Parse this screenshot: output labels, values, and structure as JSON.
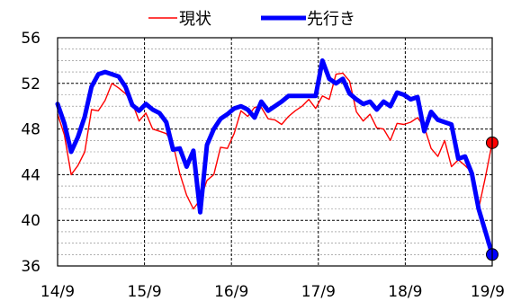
{
  "chart_data": {
    "type": "line",
    "grid": true,
    "legend_position": "top",
    "ylim": [
      36,
      56
    ],
    "y_ticks": [
      "56",
      "52",
      "48",
      "44",
      "40",
      "36"
    ],
    "y_tick_values": [
      56,
      52,
      48,
      44,
      40,
      36
    ],
    "x_tick_labels": [
      "14/9",
      "15/9",
      "16/9",
      "17/9",
      "18/9",
      "19/9"
    ],
    "colors": {
      "genjo": "#ff0000",
      "sakiyuki": "#0000ff",
      "grid_major": "#000000",
      "grid_minor": "#808080"
    },
    "series": [
      {
        "name": "現状",
        "color": "#ff0000",
        "values": [
          49.3,
          47.5,
          44.0,
          44.8,
          46.0,
          49.7,
          49.6,
          50.5,
          52.0,
          51.6,
          51.1,
          50.3,
          48.7,
          49.4,
          48.0,
          47.8,
          47.6,
          46.7,
          44.1,
          42.2,
          41.0,
          41.8,
          43.5,
          44.0,
          46.4,
          46.3,
          47.6,
          49.6,
          49.1,
          49.9,
          49.9,
          48.9,
          48.8,
          48.4,
          49.1,
          49.6,
          50.0,
          50.6,
          49.8,
          50.9,
          50.6,
          52.8,
          52.9,
          52.2,
          49.5,
          48.7,
          49.3,
          48.1,
          48.0,
          47.0,
          48.5,
          48.4,
          48.6,
          49.0,
          48.2,
          46.3,
          45.6,
          47.0,
          44.7,
          45.3,
          44.8,
          44.2,
          41.0,
          43.8,
          46.8
        ]
      },
      {
        "name": "先行き",
        "color": "#0000ff",
        "values": [
          50.2,
          48.5,
          46.0,
          47.3,
          49.1,
          51.7,
          52.8,
          53.0,
          52.8,
          52.6,
          51.7,
          50.1,
          49.6,
          50.2,
          49.7,
          49.4,
          48.6,
          46.2,
          46.3,
          44.7,
          46.1,
          40.7,
          46.6,
          48.0,
          48.9,
          49.3,
          49.8,
          50.0,
          49.7,
          49.0,
          50.4,
          49.6,
          50.0,
          50.4,
          50.9,
          50.9,
          50.9,
          50.9,
          50.9,
          54.0,
          52.4,
          52.0,
          52.4,
          51.1,
          50.6,
          50.2,
          50.4,
          49.7,
          50.4,
          50.0,
          51.2,
          51.0,
          50.6,
          50.8,
          47.8,
          49.5,
          48.8,
          48.6,
          48.4,
          45.4,
          45.6,
          44.1,
          41.0,
          39.0,
          37.0
        ]
      }
    ]
  }
}
